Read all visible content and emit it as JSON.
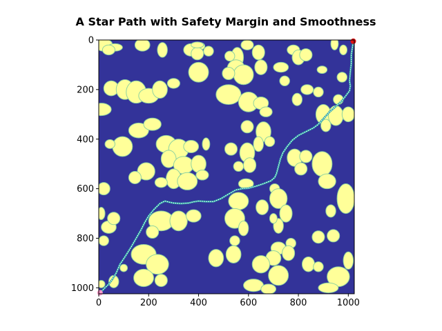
{
  "chart_data": {
    "type": "heatmap",
    "title": "A Star Path with Safety Margin and Smoothness",
    "xlabel": "",
    "ylabel": "",
    "xlim": [
      0,
      1024
    ],
    "ylim": [
      1024,
      0
    ],
    "x_ticks": [
      0,
      200,
      400,
      600,
      800,
      1000
    ],
    "y_ticks": [
      0,
      200,
      400,
      600,
      800,
      1000
    ],
    "grid": false,
    "colors": {
      "free_space": "#333399",
      "obstacle": "#ffff99",
      "obstacle_edge": "#8fd3a0",
      "path": "#ffffff",
      "path_outline": "#2ca6a4",
      "start_marker": "#ff99cc",
      "goal_marker": "#dd1111"
    },
    "path": {
      "start": [
        5,
        1020
      ],
      "goal": [
        1020,
        5
      ],
      "points": [
        [
          5,
          1020
        ],
        [
          20,
          1005
        ],
        [
          40,
          985
        ],
        [
          55,
          965
        ],
        [
          70,
          940
        ],
        [
          85,
          905
        ],
        [
          105,
          875
        ],
        [
          130,
          835
        ],
        [
          150,
          800
        ],
        [
          170,
          765
        ],
        [
          185,
          735
        ],
        [
          200,
          710
        ],
        [
          220,
          685
        ],
        [
          245,
          660
        ],
        [
          265,
          650
        ],
        [
          285,
          655
        ],
        [
          300,
          658
        ],
        [
          330,
          660
        ],
        [
          360,
          658
        ],
        [
          380,
          653
        ],
        [
          400,
          650
        ],
        [
          430,
          652
        ],
        [
          460,
          652
        ],
        [
          490,
          640
        ],
        [
          520,
          622
        ],
        [
          550,
          605
        ],
        [
          575,
          600
        ],
        [
          600,
          598
        ],
        [
          630,
          590
        ],
        [
          660,
          580
        ],
        [
          690,
          568
        ],
        [
          705,
          555
        ],
        [
          712,
          540
        ],
        [
          720,
          510
        ],
        [
          728,
          480
        ],
        [
          738,
          455
        ],
        [
          755,
          430
        ],
        [
          775,
          405
        ],
        [
          800,
          385
        ],
        [
          830,
          370
        ],
        [
          860,
          355
        ],
        [
          880,
          340
        ],
        [
          900,
          318
        ],
        [
          925,
          290
        ],
        [
          950,
          268
        ],
        [
          975,
          245
        ],
        [
          990,
          225
        ],
        [
          1005,
          205
        ],
        [
          1008,
          185
        ],
        [
          1005,
          165
        ],
        [
          1008,
          130
        ],
        [
          1012,
          95
        ],
        [
          1012,
          60
        ],
        [
          1015,
          40
        ],
        [
          1018,
          20
        ],
        [
          1020,
          5
        ]
      ]
    },
    "obstacles": [
      [
        20,
        20,
        35,
        25
      ],
      [
        65,
        30,
        30,
        15
      ],
      [
        40,
        40,
        25,
        20
      ],
      [
        175,
        20,
        30,
        25
      ],
      [
        255,
        40,
        20,
        30
      ],
      [
        370,
        40,
        30,
        25
      ],
      [
        405,
        25,
        20,
        15
      ],
      [
        395,
        55,
        25,
        25
      ],
      [
        440,
        45,
        20,
        20
      ],
      [
        395,
        20,
        25,
        12
      ],
      [
        595,
        20,
        25,
        20
      ],
      [
        555,
        70,
        25,
        40
      ],
      [
        640,
        50,
        25,
        30
      ],
      [
        525,
        65,
        20,
        20
      ],
      [
        780,
        40,
        25,
        20
      ],
      [
        800,
        70,
        25,
        30
      ],
      [
        830,
        60,
        25,
        25
      ],
      [
        945,
        15,
        15,
        25
      ],
      [
        980,
        40,
        15,
        20
      ],
      [
        400,
        130,
        40,
        40
      ],
      [
        550,
        115,
        35,
        35
      ],
      [
        580,
        140,
        40,
        40
      ],
      [
        520,
        135,
        25,
        25
      ],
      [
        895,
        120,
        20,
        15
      ],
      [
        730,
        110,
        30,
        20
      ],
      [
        745,
        165,
        20,
        20
      ],
      [
        650,
        110,
        25,
        30
      ],
      [
        50,
        195,
        30,
        30
      ],
      [
        105,
        200,
        35,
        40
      ],
      [
        150,
        210,
        40,
        45
      ],
      [
        200,
        225,
        40,
        30
      ],
      [
        245,
        200,
        30,
        35
      ],
      [
        300,
        175,
        25,
        20
      ],
      [
        10,
        280,
        40,
        25
      ],
      [
        520,
        220,
        50,
        40
      ],
      [
        600,
        250,
        40,
        40
      ],
      [
        650,
        255,
        30,
        25
      ],
      [
        670,
        290,
        25,
        20
      ],
      [
        835,
        200,
        25,
        20
      ],
      [
        795,
        240,
        20,
        25
      ],
      [
        880,
        210,
        20,
        20
      ],
      [
        900,
        300,
        30,
        40
      ],
      [
        950,
        305,
        30,
        40
      ],
      [
        910,
        345,
        20,
        25
      ],
      [
        1000,
        300,
        25,
        30
      ],
      [
        960,
        240,
        20,
        20
      ],
      [
        975,
        150,
        20,
        20
      ],
      [
        160,
        365,
        40,
        30
      ],
      [
        215,
        340,
        35,
        25
      ],
      [
        660,
        370,
        30,
        40
      ],
      [
        640,
        420,
        20,
        30
      ],
      [
        685,
        410,
        20,
        20
      ],
      [
        595,
        350,
        25,
        25
      ],
      [
        270,
        420,
        40,
        35
      ],
      [
        320,
        440,
        40,
        40
      ],
      [
        280,
        480,
        30,
        35
      ],
      [
        340,
        505,
        40,
        35
      ],
      [
        300,
        560,
        30,
        40
      ],
      [
        355,
        570,
        40,
        35
      ],
      [
        400,
        500,
        30,
        35
      ],
      [
        415,
        545,
        25,
        20
      ],
      [
        370,
        430,
        30,
        25
      ],
      [
        430,
        420,
        15,
        25
      ],
      [
        530,
        440,
        25,
        25
      ],
      [
        595,
        455,
        30,
        40
      ],
      [
        605,
        505,
        25,
        30
      ],
      [
        785,
        475,
        30,
        35
      ],
      [
        810,
        520,
        25,
        25
      ],
      [
        830,
        470,
        25,
        25
      ],
      [
        895,
        500,
        40,
        50
      ],
      [
        915,
        570,
        35,
        30
      ],
      [
        95,
        430,
        40,
        40
      ],
      [
        45,
        420,
        20,
        18
      ],
      [
        190,
        530,
        35,
        35
      ],
      [
        145,
        555,
        25,
        25
      ],
      [
        250,
        575,
        25,
        20
      ],
      [
        590,
        580,
        30,
        20
      ],
      [
        560,
        510,
        20,
        20
      ],
      [
        20,
        600,
        25,
        25
      ],
      [
        655,
        675,
        25,
        30
      ],
      [
        705,
        600,
        20,
        20
      ],
      [
        560,
        650,
        40,
        35
      ],
      [
        545,
        720,
        40,
        40
      ],
      [
        580,
        760,
        20,
        30
      ],
      [
        720,
        640,
        35,
        40
      ],
      [
        750,
        700,
        25,
        35
      ],
      [
        720,
        750,
        20,
        30
      ],
      [
        990,
        640,
        35,
        60
      ],
      [
        930,
        690,
        20,
        25
      ],
      [
        700,
        720,
        15,
        20
      ],
      [
        10,
        700,
        15,
        25
      ],
      [
        40,
        755,
        30,
        25
      ],
      [
        60,
        720,
        25,
        25
      ],
      [
        20,
        810,
        20,
        20
      ],
      [
        250,
        730,
        50,
        40
      ],
      [
        320,
        730,
        35,
        40
      ],
      [
        380,
        710,
        30,
        25
      ],
      [
        215,
        775,
        25,
        25
      ],
      [
        770,
        820,
        20,
        20
      ],
      [
        545,
        810,
        20,
        20
      ],
      [
        540,
        865,
        30,
        35
      ],
      [
        470,
        880,
        30,
        35
      ],
      [
        720,
        840,
        30,
        25
      ],
      [
        700,
        880,
        30,
        30
      ],
      [
        760,
        860,
        25,
        30
      ],
      [
        880,
        795,
        25,
        25
      ],
      [
        940,
        790,
        25,
        25
      ],
      [
        180,
        865,
        50,
        40
      ],
      [
        235,
        905,
        45,
        40
      ],
      [
        180,
        960,
        40,
        35
      ],
      [
        250,
        970,
        25,
        25
      ],
      [
        60,
        975,
        20,
        25
      ],
      [
        650,
        905,
        35,
        35
      ],
      [
        720,
        950,
        40,
        40
      ],
      [
        620,
        990,
        40,
        25
      ],
      [
        680,
        1005,
        30,
        20
      ],
      [
        840,
        905,
        25,
        30
      ],
      [
        880,
        915,
        20,
        20
      ],
      [
        960,
        955,
        45,
        40
      ],
      [
        1000,
        890,
        20,
        35
      ],
      [
        920,
        1000,
        40,
        20
      ],
      [
        10,
        985,
        15,
        15
      ],
      [
        100,
        920,
        15,
        15
      ]
    ]
  }
}
